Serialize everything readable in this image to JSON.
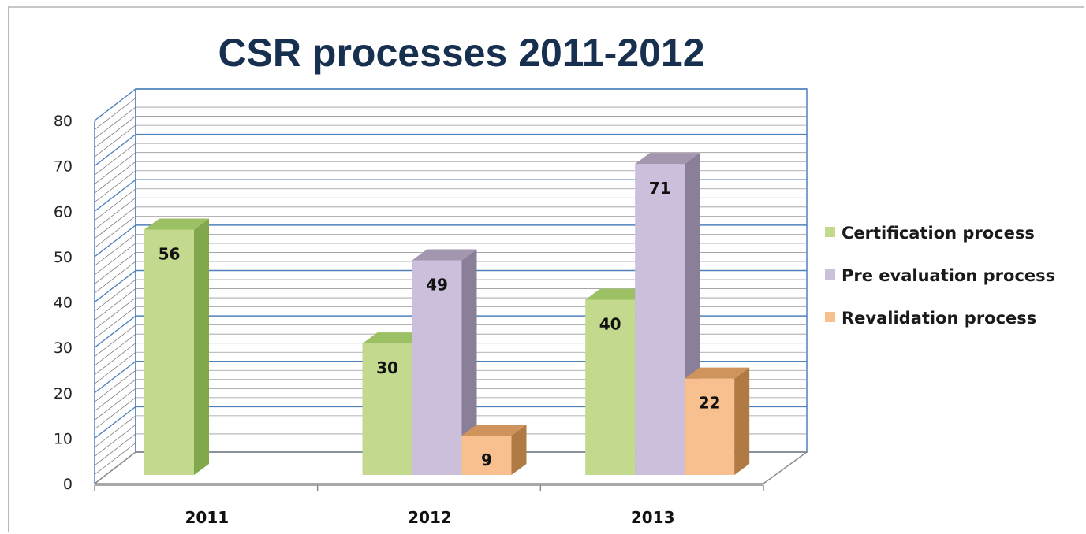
{
  "chart_data": {
    "type": "bar",
    "title": "CSR processes 2011-2012",
    "categories": [
      "2011",
      "2012",
      "2013"
    ],
    "series": [
      {
        "name": "Certification process",
        "values": [
          56,
          30,
          40
        ],
        "color": "#c3d98e",
        "side": "#82a84e",
        "top": "#9cc064"
      },
      {
        "name": "Pre evaluation process",
        "values": [
          null,
          49,
          71
        ],
        "color": "#cbbfdc",
        "side": "#8a7f98",
        "top": "#a397b0"
      },
      {
        "name": "Revalidation process",
        "values": [
          null,
          9,
          22
        ],
        "color": "#f7c08e",
        "side": "#b07a45",
        "top": "#cf935c"
      }
    ],
    "y_ticks": [
      "0",
      "10",
      "20",
      "30",
      "40",
      "50",
      "60",
      "70",
      "80"
    ],
    "ylim": [
      0,
      80
    ],
    "grid": true,
    "legend_position": "right",
    "colors": {
      "gridline": "#4f81bd",
      "wall_hatch": "#7f7f7f",
      "axis": "#8c8c8c"
    }
  }
}
